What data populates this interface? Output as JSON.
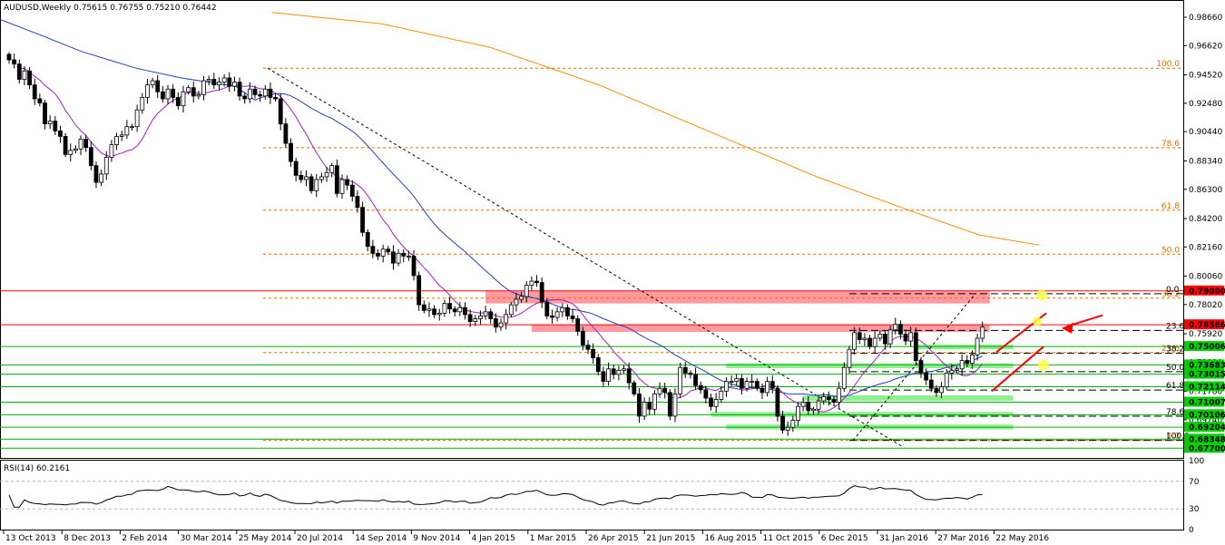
{
  "chart_data": {
    "type": "candlestick",
    "title": "AUDUSD,Weekly  0.75615 0.76755 0.75210 0.76442",
    "price_axis": {
      "range": [
        0.67,
        0.999
      ],
      "ticks": [
        "0.98660",
        "0.96620",
        "0.94520",
        "0.92480",
        "0.90440",
        "0.88340",
        "0.86300",
        "0.84200",
        "0.82160",
        "0.80060",
        "0.78020",
        "0.75920",
        "0.73880",
        "0.71780",
        "0.69740"
      ]
    },
    "date_axis": {
      "labels": [
        "13 Oct 2013",
        "8 Dec 2013",
        "2 Feb 2014",
        "30 Mar 2014",
        "25 May 2014",
        "20 Jul 2014",
        "14 Sep 2014",
        "9 Nov 2014",
        "4 Jan 2015",
        "1 Mar 2015",
        "26 Apr 2015",
        "21 Jun 2015",
        "16 Aug 2015",
        "11 Oct 2015",
        "6 Dec 2015",
        "31 Jan 2016",
        "27 Mar 2016",
        "22 May 2016"
      ]
    },
    "candles_close": [
      0.956,
      0.953,
      0.942,
      0.948,
      0.938,
      0.928,
      0.925,
      0.91,
      0.912,
      0.905,
      0.901,
      0.888,
      0.891,
      0.892,
      0.899,
      0.893,
      0.88,
      0.868,
      0.874,
      0.886,
      0.895,
      0.901,
      0.902,
      0.908,
      0.908,
      0.92,
      0.929,
      0.938,
      0.941,
      0.933,
      0.928,
      0.935,
      0.929,
      0.923,
      0.933,
      0.936,
      0.93,
      0.931,
      0.941,
      0.942,
      0.938,
      0.94,
      0.943,
      0.937,
      0.94,
      0.93,
      0.928,
      0.935,
      0.931,
      0.93,
      0.935,
      0.929,
      0.928,
      0.91,
      0.896,
      0.883,
      0.873,
      0.87,
      0.872,
      0.862,
      0.87,
      0.872,
      0.875,
      0.88,
      0.86,
      0.87,
      0.866,
      0.858,
      0.85,
      0.832,
      0.822,
      0.817,
      0.815,
      0.82,
      0.818,
      0.81,
      0.817,
      0.815,
      0.815,
      0.801,
      0.78,
      0.776,
      0.777,
      0.773,
      0.774,
      0.781,
      0.777,
      0.775,
      0.778,
      0.773,
      0.768,
      0.77,
      0.772,
      0.775,
      0.77,
      0.764,
      0.767,
      0.773,
      0.78,
      0.784,
      0.786,
      0.794,
      0.797,
      0.796,
      0.782,
      0.772,
      0.771,
      0.775,
      0.778,
      0.772,
      0.77,
      0.761,
      0.751,
      0.748,
      0.742,
      0.732,
      0.725,
      0.734,
      0.73,
      0.733,
      0.734,
      0.724,
      0.716,
      0.7,
      0.71,
      0.705,
      0.716,
      0.72,
      0.717,
      0.7,
      0.716,
      0.735,
      0.731,
      0.73,
      0.722,
      0.719,
      0.713,
      0.707,
      0.712,
      0.718,
      0.725,
      0.725,
      0.727,
      0.72,
      0.725,
      0.725,
      0.72,
      0.717,
      0.725,
      0.72,
      0.7,
      0.69,
      0.692,
      0.697,
      0.707,
      0.71,
      0.704,
      0.705,
      0.711,
      0.714,
      0.712,
      0.71,
      0.72,
      0.735,
      0.748,
      0.76,
      0.755,
      0.756,
      0.75,
      0.756,
      0.759,
      0.752,
      0.762,
      0.766,
      0.759,
      0.754,
      0.76,
      0.74,
      0.731,
      0.726,
      0.72,
      0.717,
      0.721,
      0.731,
      0.733,
      0.734,
      0.74,
      0.738,
      0.744,
      0.756,
      0.764
    ],
    "rsi": {
      "label": "RSI(14) 60.2161",
      "range": [
        0,
        100
      ],
      "levels": [
        70,
        30
      ],
      "level_labels": [
        "100",
        "70",
        "30",
        "0"
      ]
    },
    "horizontal_levels": [
      {
        "tag": "0.79000",
        "price": 0.79,
        "color": "#ff0000",
        "tag_bg": "#ff0000"
      },
      {
        "tag": "0.76566",
        "price": 0.76566,
        "color": "#ff0000",
        "tag_bg": "#ff0000"
      },
      {
        "tag": "0.75006",
        "price": 0.75006,
        "color": "#00b000",
        "tag_bg": "#00d000"
      },
      {
        "tag": "0.73683",
        "price": 0.73683,
        "color": "#00b000",
        "tag_bg": "#00d000"
      },
      {
        "tag": "0.73015",
        "price": 0.73015,
        "color": "#00b000",
        "tag_bg": "#00d000"
      },
      {
        "tag": "0.72114",
        "price": 0.72114,
        "color": "#00b000",
        "tag_bg": "#00d000"
      },
      {
        "tag": "0.71007",
        "price": 0.71007,
        "color": "#00b000",
        "tag_bg": "#00d000"
      },
      {
        "tag": "0.70106",
        "price": 0.70106,
        "color": "#00b000",
        "tag_bg": "#00d000"
      },
      {
        "tag": "0.69204",
        "price": 0.69204,
        "color": "#00b000",
        "tag_bg": "#00d000"
      },
      {
        "tag": "0.68348",
        "price": 0.68348,
        "color": "#00b000",
        "tag_bg": "#00d000"
      },
      {
        "tag": "0.67700",
        "price": 0.677,
        "color": "#00b000",
        "tag_bg": "#00d000"
      }
    ],
    "fib_major": [
      {
        "label": "100.0",
        "price": 0.95
      },
      {
        "label": "78.6",
        "price": 0.8929
      },
      {
        "label": "61.8",
        "price": 0.848
      },
      {
        "label": "50.0",
        "price": 0.8164
      },
      {
        "label": "38.2",
        "price": 0.7848
      },
      {
        "label": "23.6",
        "price": 0.7457
      },
      {
        "label": "0.0",
        "price": 0.6826
      }
    ],
    "fib_minor": [
      {
        "label": "0.0",
        "price": 0.788
      },
      {
        "label": "23.6",
        "price": 0.7616
      },
      {
        "label": "38.2",
        "price": 0.7452
      },
      {
        "label": "50.0",
        "price": 0.732
      },
      {
        "label": "61.8",
        "price": 0.7188
      },
      {
        "label": "78.6",
        "price": 0.7
      },
      {
        "label": "100.0",
        "price": 0.6826
      }
    ],
    "colors": {
      "bull": "#ffffff",
      "bear": "#000000",
      "ma_fast": "#a020c0",
      "ma_mid": "#2040c0",
      "ma_slow": "#ff8c00",
      "resistance_zone": "#ff9aa2",
      "support_zone": "#90f090",
      "fib_major": "#e07000",
      "fib_minor": "#000000",
      "arrow": "#ff0000",
      "marker": "#ffff44"
    }
  }
}
